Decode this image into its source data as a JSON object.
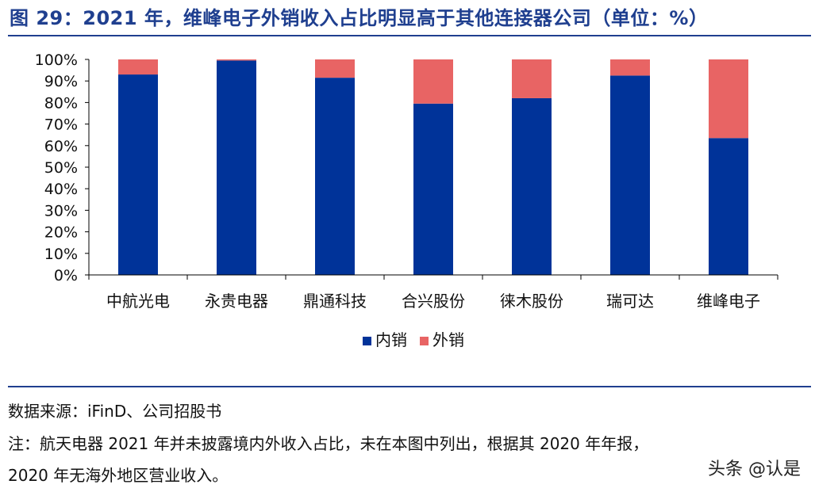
{
  "header": {
    "title": "图 29：2021 年，维峰电子外销收入占比明显高于其他连接器公司（单位：%）"
  },
  "footer": {
    "source": "数据来源：iFinD、公司招股书",
    "note_line1": "注：航天电器  2021  年并未披露境内外收入占比，未在本图中列出，根据其  2020  年年报，",
    "note_line2": "2020 年无海外地区营业收入。",
    "watermark": "头条 @认是"
  },
  "chart_data": {
    "type": "bar",
    "stacked": true,
    "categories": [
      "中航光电",
      "永贵电器",
      "鼎通科技",
      "合兴股份",
      "徕木股份",
      "瑞可达",
      "维峰电子"
    ],
    "series": [
      {
        "name": "内销",
        "color": "#003399",
        "values": [
          93,
          99.5,
          91.5,
          79.5,
          82,
          92.5,
          63.5
        ]
      },
      {
        "name": "外销",
        "color": "#e86464",
        "values": [
          7,
          0.5,
          8.5,
          20.5,
          18,
          7.5,
          36.5
        ]
      }
    ],
    "ylim": [
      0,
      100
    ],
    "yticks": [
      "0%",
      "10%",
      "20%",
      "30%",
      "40%",
      "50%",
      "60%",
      "70%",
      "80%",
      "90%",
      "100%"
    ],
    "legend_position": "bottom",
    "grid": false
  }
}
